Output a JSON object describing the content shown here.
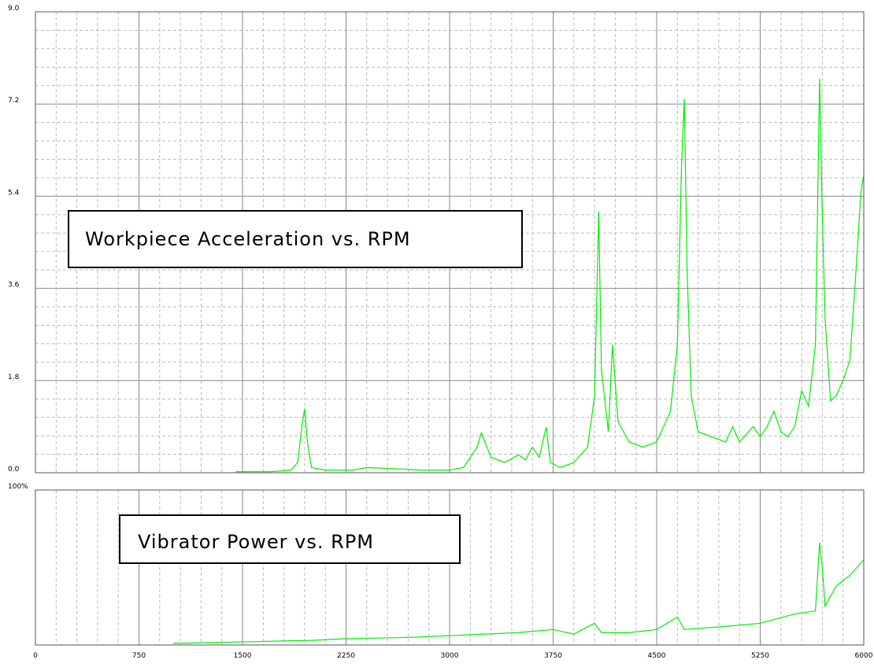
{
  "chart_data": [
    {
      "type": "line",
      "annotation": "Workpiece Acceleration vs. RPM",
      "xlim": [
        0,
        6000
      ],
      "xticks": [
        0,
        750,
        1500,
        2250,
        3000,
        3750,
        4500,
        5250,
        6000
      ],
      "show_xtick_labels": false,
      "ylim": [
        0,
        9
      ],
      "yticks": [
        {
          "value": 0,
          "label": "0.0"
        },
        1.8,
        3.6,
        5.4,
        7.2,
        {
          "value": 9,
          "label": "9.0"
        }
      ],
      "grid": true,
      "minor_divisions": 5,
      "series": [
        {
          "color": "#00ee00",
          "x": [
            1450,
            1700,
            1850,
            1900,
            1930,
            1950,
            1970,
            2000,
            2100,
            2300,
            2400,
            2600,
            2800,
            3000,
            3100,
            3200,
            3230,
            3300,
            3400,
            3500,
            3550,
            3600,
            3650,
            3700,
            3730,
            3800,
            3900,
            4000,
            4050,
            4080,
            4100,
            4150,
            4180,
            4220,
            4300,
            4400,
            4500,
            4600,
            4650,
            4680,
            4700,
            4720,
            4750,
            4800,
            4900,
            5000,
            5050,
            5100,
            5200,
            5250,
            5300,
            5350,
            5400,
            5450,
            5500,
            5550,
            5600,
            5650,
            5680,
            5700,
            5720,
            5760,
            5800,
            5850,
            5900,
            5950,
            5980,
            6000
          ],
          "values": [
            0.02,
            0.02,
            0.05,
            0.2,
            0.9,
            1.25,
            0.6,
            0.1,
            0.05,
            0.05,
            0.1,
            0.08,
            0.05,
            0.05,
            0.1,
            0.5,
            0.78,
            0.3,
            0.2,
            0.35,
            0.25,
            0.5,
            0.3,
            0.89,
            0.2,
            0.1,
            0.2,
            0.5,
            1.5,
            5.1,
            2.0,
            0.8,
            2.5,
            1.0,
            0.6,
            0.5,
            0.6,
            1.2,
            2.5,
            6.0,
            7.3,
            4.0,
            1.5,
            0.8,
            0.7,
            0.6,
            0.9,
            0.6,
            0.9,
            0.7,
            0.9,
            1.2,
            0.8,
            0.7,
            0.9,
            1.6,
            1.3,
            2.5,
            7.7,
            5.0,
            3.0,
            1.4,
            1.5,
            1.8,
            2.2,
            4.2,
            5.5,
            5.8
          ]
        }
      ]
    },
    {
      "type": "line",
      "annotation": "Vibrator Power vs. RPM",
      "xlim": [
        0,
        6000
      ],
      "xticks": [
        0,
        750,
        1500,
        2250,
        3000,
        3750,
        4500,
        5250,
        6000
      ],
      "show_xtick_labels": true,
      "ylim": [
        0,
        100
      ],
      "yticks": [
        {
          "value": 100,
          "label": "100%"
        }
      ],
      "grid": true,
      "minor_divisions": 5,
      "series": [
        {
          "color": "#00ee00",
          "x": [
            1000,
            1500,
            2000,
            2250,
            2750,
            3000,
            3500,
            3750,
            3900,
            4050,
            4100,
            4300,
            4500,
            4650,
            4700,
            5000,
            5250,
            5500,
            5650,
            5680,
            5700,
            5720,
            5750,
            5800,
            5900,
            6000
          ],
          "values": [
            1,
            2,
            3,
            4,
            5,
            6,
            8,
            10,
            7,
            14,
            8,
            8,
            10,
            18,
            10,
            12,
            14,
            20,
            22,
            66,
            50,
            25,
            30,
            38,
            45,
            55
          ]
        }
      ]
    }
  ]
}
